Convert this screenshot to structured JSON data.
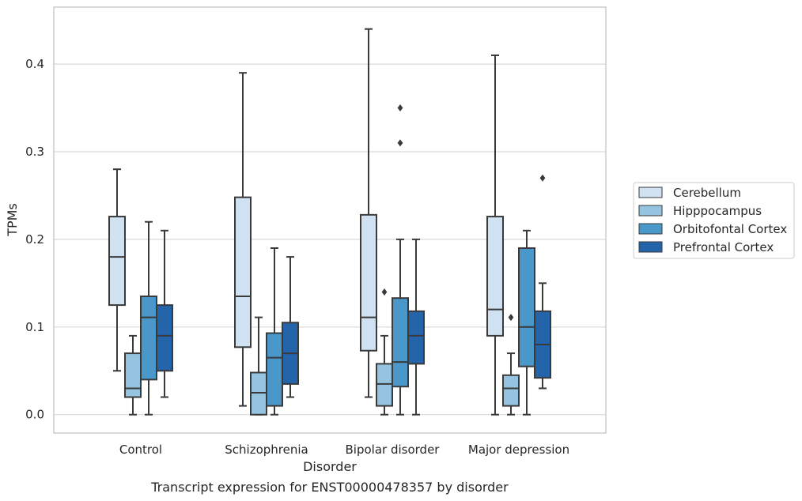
{
  "chart_data": {
    "type": "box",
    "caption": "Transcript expression for ENST00000478357 by disorder",
    "xlabel": "Disorder",
    "ylabel": "TPMs",
    "ylim": [
      -0.021,
      0.465
    ],
    "yticks": [
      0.0,
      0.1,
      0.2,
      0.3,
      0.4
    ],
    "ytick_labels": [
      "0.0",
      "0.1",
      "0.2",
      "0.3",
      "0.4"
    ],
    "grid": "horizontal",
    "legend_position": "right",
    "categories": [
      "Control",
      "Schizophrenia",
      "Bipolar disorder",
      "Major depression"
    ],
    "series": [
      {
        "name": "Cerebellum",
        "color": "#d0e1f2",
        "boxes": [
          {
            "whislo": 0.05,
            "q1": 0.125,
            "med": 0.18,
            "q3": 0.226,
            "whishi": 0.28,
            "fliers": []
          },
          {
            "whislo": 0.01,
            "q1": 0.077,
            "med": 0.135,
            "q3": 0.248,
            "whishi": 0.39,
            "fliers": []
          },
          {
            "whislo": 0.02,
            "q1": 0.073,
            "med": 0.111,
            "q3": 0.228,
            "whishi": 0.44,
            "fliers": []
          },
          {
            "whislo": 0.0,
            "q1": 0.09,
            "med": 0.12,
            "q3": 0.226,
            "whishi": 0.41,
            "fliers": []
          }
        ]
      },
      {
        "name": "Hipppocampus",
        "color": "#94c4df",
        "boxes": [
          {
            "whislo": 0.0,
            "q1": 0.02,
            "med": 0.03,
            "q3": 0.07,
            "whishi": 0.09,
            "fliers": []
          },
          {
            "whislo": 0.0,
            "q1": 0.0,
            "med": 0.025,
            "q3": 0.048,
            "whishi": 0.111,
            "fliers": []
          },
          {
            "whislo": 0.0,
            "q1": 0.01,
            "med": 0.035,
            "q3": 0.058,
            "whishi": 0.09,
            "fliers": [
              0.14
            ]
          },
          {
            "whislo": 0.0,
            "q1": 0.01,
            "med": 0.03,
            "q3": 0.045,
            "whishi": 0.07,
            "fliers": [
              0.111
            ]
          }
        ]
      },
      {
        "name": "Orbitofontal Cortex",
        "color": "#4a98c9",
        "boxes": [
          {
            "whislo": 0.0,
            "q1": 0.04,
            "med": 0.111,
            "q3": 0.135,
            "whishi": 0.22,
            "fliers": []
          },
          {
            "whislo": 0.0,
            "q1": 0.01,
            "med": 0.065,
            "q3": 0.093,
            "whishi": 0.19,
            "fliers": []
          },
          {
            "whislo": 0.0,
            "q1": 0.032,
            "med": 0.06,
            "q3": 0.133,
            "whishi": 0.2,
            "fliers": [
              0.31,
              0.35
            ]
          },
          {
            "whislo": 0.0,
            "q1": 0.055,
            "med": 0.1,
            "q3": 0.19,
            "whishi": 0.21,
            "fliers": []
          }
        ]
      },
      {
        "name": "Prefrontal Cortex",
        "color": "#2464ab",
        "boxes": [
          {
            "whislo": 0.02,
            "q1": 0.05,
            "med": 0.09,
            "q3": 0.125,
            "whishi": 0.21,
            "fliers": []
          },
          {
            "whislo": 0.02,
            "q1": 0.035,
            "med": 0.07,
            "q3": 0.105,
            "whishi": 0.18,
            "fliers": []
          },
          {
            "whislo": 0.0,
            "q1": 0.058,
            "med": 0.09,
            "q3": 0.118,
            "whishi": 0.2,
            "fliers": []
          },
          {
            "whislo": 0.03,
            "q1": 0.042,
            "med": 0.08,
            "q3": 0.118,
            "whishi": 0.15,
            "fliers": [
              0.27
            ]
          }
        ]
      }
    ]
  },
  "colors": {
    "frame": "#cccccc",
    "grid": "#d9d9d9",
    "box_edge": "#3a3a3a",
    "text": "#262626"
  }
}
